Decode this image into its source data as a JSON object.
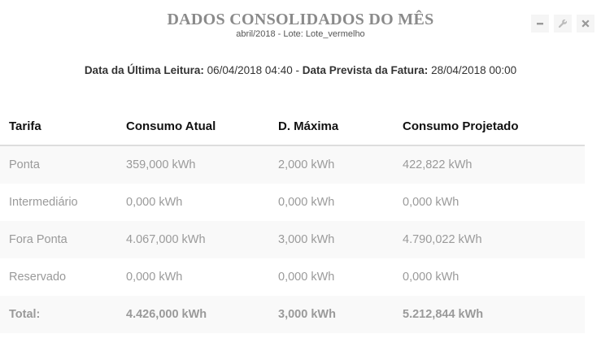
{
  "header": {
    "title": "DADOS CONSOLIDADOS DO MÊS",
    "subtitle": "abril/2018 - Lote: Lote_vermelho"
  },
  "tools": {
    "minimize": "minimize-icon",
    "settings": "wrench-icon",
    "close": "close-icon"
  },
  "readings": {
    "last_label": "Data da Última Leitura:",
    "last_value": "06/04/2018 04:40",
    "separator": "-",
    "forecast_label": "Data Prevista da Fatura:",
    "forecast_value": "28/04/2018 00:00"
  },
  "table": {
    "headers": [
      "Tarifa",
      "Consumo Atual",
      "D. Máxima",
      "Consumo Projetado"
    ],
    "rows": [
      [
        "Ponta",
        "359,000 kWh",
        "2,000 kWh",
        "422,822 kWh"
      ],
      [
        "Intermediário",
        "0,000 kWh",
        "0,000 kWh",
        "0,000 kWh"
      ],
      [
        "Fora Ponta",
        "4.067,000 kWh",
        "3,000 kWh",
        "4.790,022 kWh"
      ],
      [
        "Reservado",
        "0,000 kWh",
        "0,000 kWh",
        "0,000 kWh"
      ],
      [
        "Total:",
        "4.426,000 kWh",
        "3,000 kWh",
        "5.212,844 kWh"
      ]
    ]
  },
  "colors": {
    "title": "#8a8a8a",
    "stripe": "#f9f9f9",
    "cell_text": "#9a9a9a"
  }
}
